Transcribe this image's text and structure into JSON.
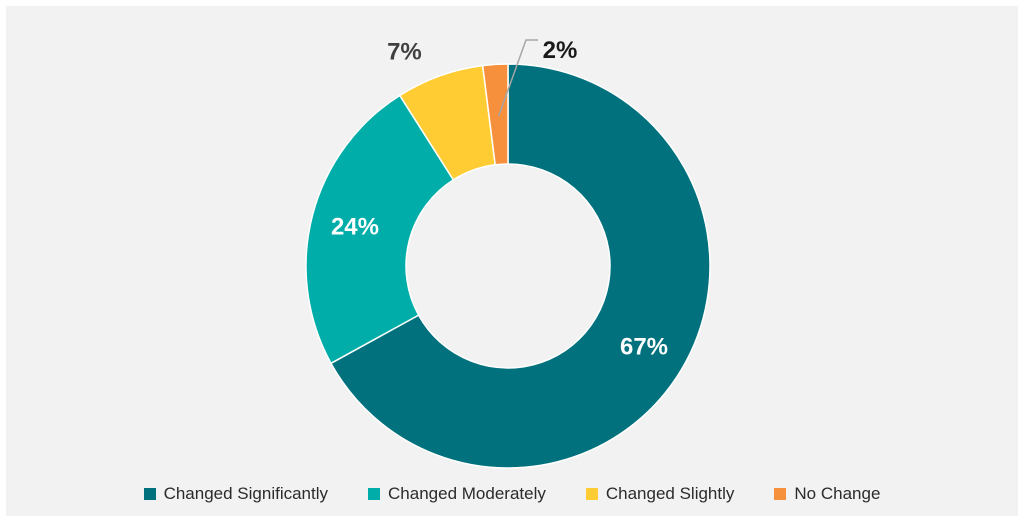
{
  "chart_data": {
    "type": "pie",
    "style": "donut",
    "categories": [
      "Changed Significantly",
      "Changed Moderately",
      "Changed Slightly",
      "No Change"
    ],
    "values": [
      67,
      24,
      7,
      2
    ],
    "labels": [
      "67%",
      "24%",
      "7%",
      "2%"
    ],
    "colors": [
      "#00717d",
      "#00ada8",
      "#ffcc33",
      "#f7903c"
    ],
    "label_colors": [
      "#ffffff",
      "#ffffff",
      "#404040",
      "#1a1a1a"
    ],
    "legend_position": "bottom",
    "title": ""
  }
}
